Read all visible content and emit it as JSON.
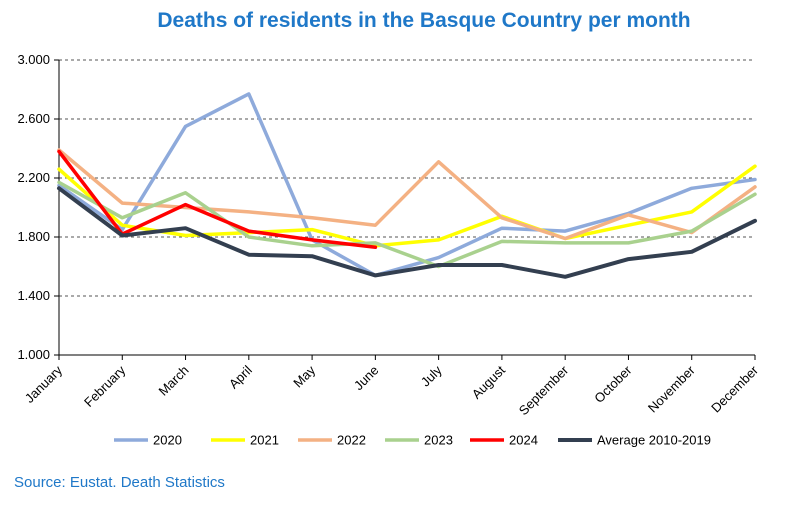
{
  "chart_data": {
    "type": "line",
    "title": "Deaths of residents in the Basque Country per month",
    "xlabel": "",
    "ylabel": "",
    "ylim": [
      1000,
      3000
    ],
    "yticks": [
      1000,
      1400,
      1800,
      2200,
      2600,
      3000
    ],
    "ytick_labels": [
      "1.000",
      "1.400",
      "1.800",
      "2.200",
      "2.600",
      "3.000"
    ],
    "grid": "horizontal dashed",
    "legend_position": "bottom",
    "categories": [
      "January",
      "February",
      "March",
      "April",
      "May",
      "June",
      "July",
      "August",
      "September",
      "October",
      "November",
      "December"
    ],
    "series": [
      {
        "name": "2020",
        "color": "#8eaadb",
        "values": [
          2150,
          1850,
          2550,
          2770,
          1780,
          1540,
          1660,
          1860,
          1840,
          1960,
          2130,
          2190
        ]
      },
      {
        "name": "2021",
        "color": "#ffff00",
        "values": [
          2260,
          1880,
          1810,
          1830,
          1850,
          1740,
          1780,
          1940,
          1790,
          1880,
          1970,
          2280
        ]
      },
      {
        "name": "2022",
        "color": "#f4b183",
        "values": [
          2390,
          2030,
          2000,
          1970,
          1930,
          1880,
          2310,
          1930,
          1790,
          1950,
          1830,
          2140
        ]
      },
      {
        "name": "2023",
        "color": "#a9d18e",
        "values": [
          2170,
          1930,
          2100,
          1800,
          1740,
          1760,
          1600,
          1770,
          1760,
          1760,
          1840,
          2090
        ]
      },
      {
        "name": "2024",
        "color": "#ff0000",
        "values": [
          2380,
          1820,
          2020,
          1840,
          1780,
          1730,
          null,
          null,
          null,
          null,
          null,
          null
        ]
      },
      {
        "name": "Average 2010-2019",
        "color": "#333f50",
        "values": [
          2130,
          1810,
          1860,
          1680,
          1670,
          1540,
          1610,
          1610,
          1530,
          1650,
          1700,
          1910
        ]
      }
    ]
  },
  "source": "Source: Eustat. Death Statistics"
}
